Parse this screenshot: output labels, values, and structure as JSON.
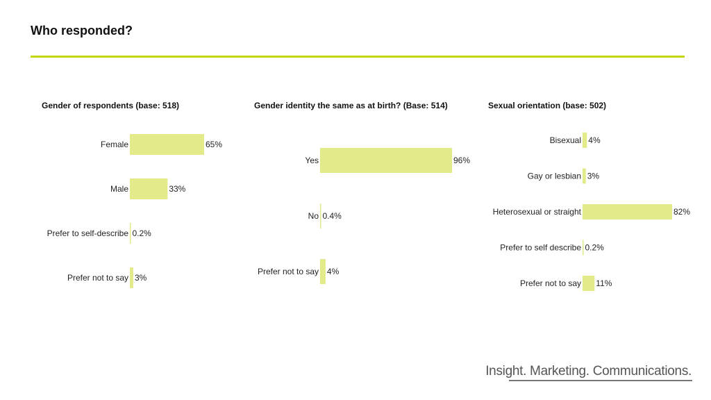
{
  "page": {
    "title": "Who responded?",
    "brand_text": "Insight. Marketing. Communications.",
    "accent_color": "#c4d600",
    "bar_color": "#e2ea8a"
  },
  "chart_data": [
    {
      "type": "bar",
      "orientation": "horizontal",
      "title": "Gender of respondents (base: 518)",
      "categories": [
        "Female",
        "Male",
        "Prefer to self-describe",
        "Prefer not to say"
      ],
      "values": [
        65,
        33,
        0.2,
        3
      ],
      "value_labels": [
        "65%",
        "33%",
        "0.2%",
        "3%"
      ],
      "unit": "%"
    },
    {
      "type": "bar",
      "orientation": "horizontal",
      "title": "Gender identity the same as at birth? (Base: 514)",
      "categories": [
        "Yes",
        "No",
        "Prefer not to say"
      ],
      "values": [
        96,
        0.4,
        4
      ],
      "value_labels": [
        "96%",
        "0.4%",
        "4%"
      ],
      "unit": "%"
    },
    {
      "type": "bar",
      "orientation": "horizontal",
      "title": "Sexual orientation (base: 502)",
      "categories": [
        "Bisexual",
        "Gay or lesbian",
        "Heterosexual or straight",
        "Prefer to self describe",
        "Prefer not to say"
      ],
      "values": [
        4,
        3,
        82,
        0.2,
        11
      ],
      "value_labels": [
        "4%",
        "3%",
        "82%",
        "0.2%",
        "11%"
      ],
      "unit": "%"
    }
  ]
}
